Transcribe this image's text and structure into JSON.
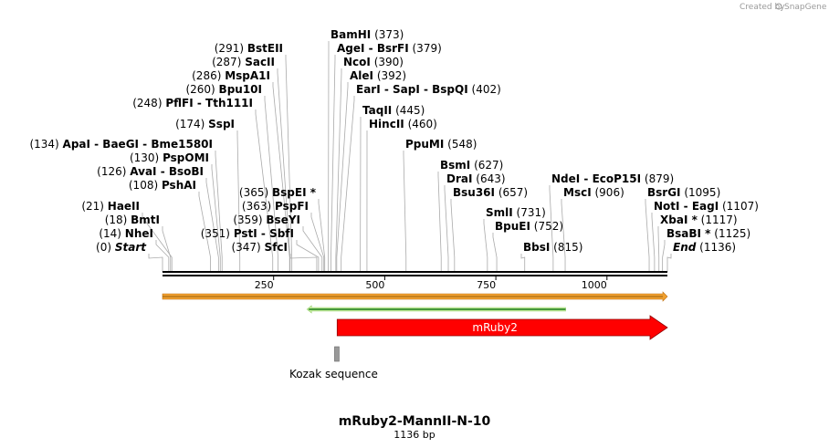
{
  "credit": {
    "prefix": "Created by",
    "brand": "SnapGene"
  },
  "title": "mRuby2-MannII-N-10",
  "length_label": "1136 bp",
  "sequence_length": 1136,
  "ruler": {
    "ticks": [
      250,
      500,
      750,
      1000
    ]
  },
  "colors": {
    "orange_bar": "#f0a030",
    "green_arrow": "#1a7a1a",
    "mruby2": "#ff0000",
    "kozak": "#999999"
  },
  "sites": [
    {
      "name": "BstEII",
      "pos": 291,
      "align": "right"
    },
    {
      "name": "SacII",
      "pos": 287,
      "align": "right"
    },
    {
      "name": "MspA1I",
      "pos": 286,
      "align": "right"
    },
    {
      "name": "Bpu10I",
      "pos": 260,
      "align": "right"
    },
    {
      "name": "PflFI  -  Tth111I",
      "pos": 248,
      "align": "right"
    },
    {
      "name": "SspI",
      "pos": 174,
      "align": "right"
    },
    {
      "name": "ApaI  -  BaeGI  -  Bme1580I",
      "pos": 134,
      "align": "right"
    },
    {
      "name": "PspOMI",
      "pos": 130,
      "align": "right"
    },
    {
      "name": "AvaI  -  BsoBI",
      "pos": 126,
      "align": "right"
    },
    {
      "name": "PshAI",
      "pos": 108,
      "align": "right"
    },
    {
      "name": "HaeII",
      "pos": 21,
      "align": "right"
    },
    {
      "name": "BmtI",
      "pos": 18,
      "align": "right"
    },
    {
      "name": "NheI",
      "pos": 14,
      "align": "right"
    },
    {
      "name": "Start",
      "pos": 0,
      "align": "right",
      "italic": true
    },
    {
      "name": "BspEI *",
      "pos": 365,
      "align": "right"
    },
    {
      "name": "PspFI",
      "pos": 363,
      "align": "right"
    },
    {
      "name": "BseYI",
      "pos": 359,
      "align": "right"
    },
    {
      "name": "PstI  -  SbfI",
      "pos": 351,
      "align": "right"
    },
    {
      "name": "SfcI",
      "pos": 347,
      "align": "right"
    },
    {
      "name": "BamHI",
      "pos": 373,
      "align": "left"
    },
    {
      "name": "AgeI  -  BsrFI",
      "pos": 379,
      "align": "left"
    },
    {
      "name": "NcoI",
      "pos": 390,
      "align": "left"
    },
    {
      "name": "AleI",
      "pos": 392,
      "align": "left"
    },
    {
      "name": "EarI  -  SapI  -  BspQI",
      "pos": 402,
      "align": "left"
    },
    {
      "name": "TaqII",
      "pos": 445,
      "align": "left"
    },
    {
      "name": "HincII",
      "pos": 460,
      "align": "left"
    },
    {
      "name": "PpuMI",
      "pos": 548,
      "align": "left"
    },
    {
      "name": "BsmI",
      "pos": 627,
      "align": "left"
    },
    {
      "name": "DraI",
      "pos": 643,
      "align": "left"
    },
    {
      "name": "Bsu36I",
      "pos": 657,
      "align": "left"
    },
    {
      "name": "SmlI",
      "pos": 731,
      "align": "left"
    },
    {
      "name": "BpuEI",
      "pos": 752,
      "align": "left"
    },
    {
      "name": "BbsI",
      "pos": 815,
      "align": "left"
    },
    {
      "name": "NdeI  -  EcoP15I",
      "pos": 879,
      "align": "left"
    },
    {
      "name": "MscI",
      "pos": 906,
      "align": "left"
    },
    {
      "name": "BsrGI",
      "pos": 1095,
      "align": "left"
    },
    {
      "name": "NotI  -  EagI",
      "pos": 1107,
      "align": "left"
    },
    {
      "name": "XbaI *",
      "pos": 1117,
      "align": "left"
    },
    {
      "name": "BsaBI *",
      "pos": 1125,
      "align": "left"
    },
    {
      "name": "End",
      "pos": 1136,
      "align": "left",
      "italic": true
    }
  ],
  "features": [
    {
      "name": "",
      "start": 0,
      "end": 1136,
      "type": "orange-bar",
      "direction": "forward"
    },
    {
      "name": "",
      "start": 325,
      "end": 907,
      "type": "green-arrow",
      "direction": "reverse"
    },
    {
      "name": "mRuby2",
      "start": 393,
      "end": 1136,
      "type": "red-arrow",
      "direction": "forward"
    },
    {
      "name": "Kozak sequence",
      "start": 383,
      "end": 393,
      "type": "box"
    }
  ]
}
